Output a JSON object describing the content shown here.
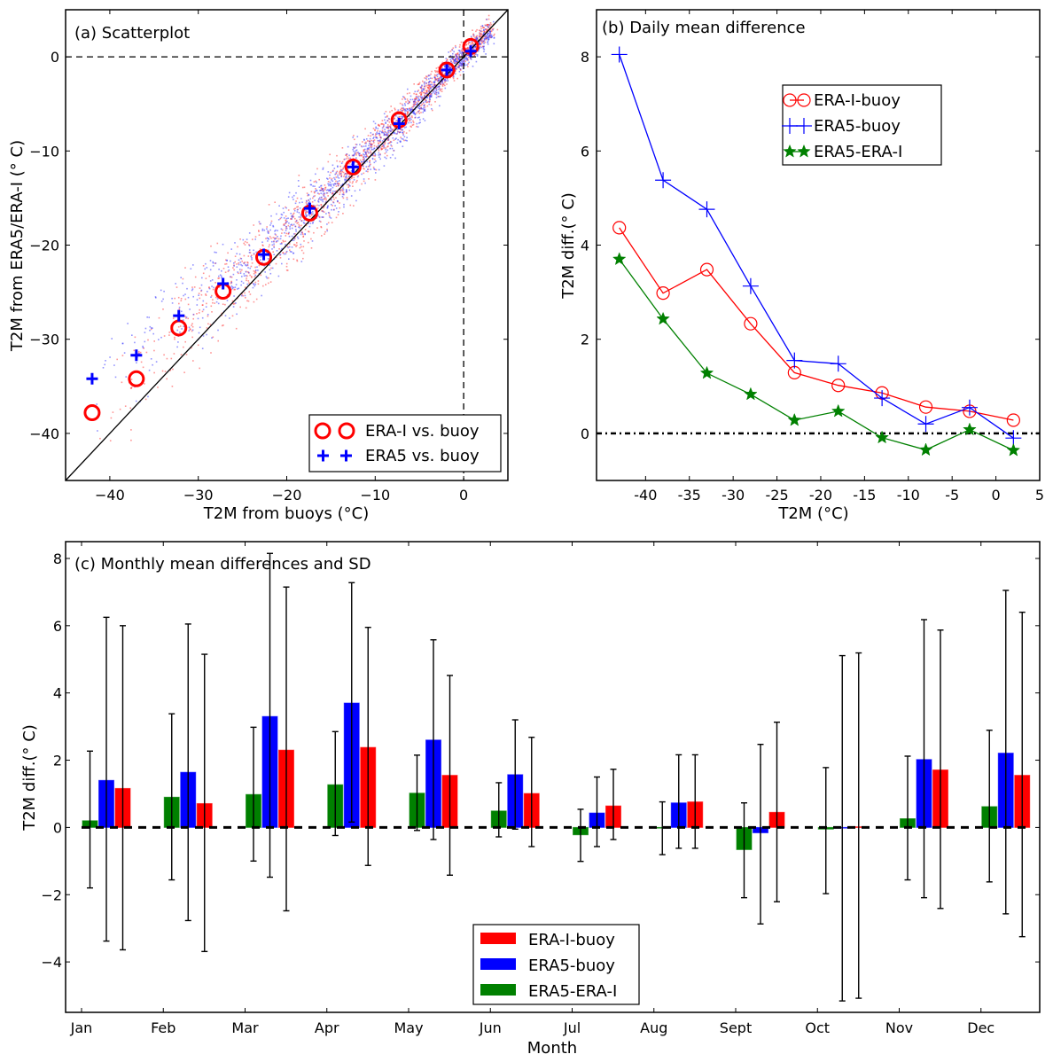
{
  "chart_data": [
    {
      "id": "a",
      "type": "scatter",
      "title": "(a) Scatterplot",
      "xlabel": "T2M from buoys (°C)",
      "ylabel": "T2M from ERA5/ERA-I (° C)",
      "xlim": [
        -45,
        5
      ],
      "ylim": [
        -45,
        5
      ],
      "xticks": [
        -40,
        -30,
        -20,
        -10,
        0
      ],
      "yticks": [
        0,
        -10,
        -20,
        -30,
        -40
      ],
      "xtick_labels": [
        "−40",
        "−30",
        "−20",
        "−10",
        "0"
      ],
      "ytick_labels": [
        "0",
        "−10",
        "−20",
        "−30",
        "−40"
      ],
      "reference_lines": {
        "one_to_one": true,
        "x_zero_dashed": true,
        "y_zero_dashed": true
      },
      "legend_position": "bottom-right",
      "series": [
        {
          "name": "ERA-I vs. buoy",
          "color": "#ff0000",
          "marker": "circle",
          "x": [
            -42.0,
            -37.0,
            -32.2,
            -27.2,
            -22.6,
            -17.4,
            -12.5,
            -7.3,
            -1.9,
            0.8
          ],
          "y": [
            -37.8,
            -34.2,
            -28.8,
            -24.9,
            -21.3,
            -16.6,
            -11.7,
            -6.7,
            -1.4,
            1.1
          ]
        },
        {
          "name": "ERA5 vs. buoy",
          "color": "#0000ff",
          "marker": "plus",
          "x": [
            -42.0,
            -37.0,
            -32.2,
            -27.2,
            -22.6,
            -17.4,
            -12.5,
            -7.3,
            -1.9,
            0.8
          ],
          "y": [
            -34.2,
            -31.7,
            -27.5,
            -24.1,
            -21.0,
            -16.1,
            -11.7,
            -7.1,
            -1.4,
            0.6
          ]
        }
      ],
      "legend": [
        {
          "label": "ERA-I vs. buoy",
          "color": "#ff0000",
          "marker": "circle"
        },
        {
          "label": "ERA5 vs. buoy",
          "color": "#0000ff",
          "marker": "plus"
        }
      ]
    },
    {
      "id": "b",
      "type": "line",
      "title": "(b) Daily mean difference",
      "xlabel": "T2M (°C)",
      "ylabel": "T2M diff.(° C)",
      "xlim": [
        -45.6,
        5
      ],
      "ylim": [
        -1,
        9
      ],
      "xticks": [
        -40,
        -35,
        -30,
        -25,
        -20,
        -15,
        -10,
        -5,
        0,
        5
      ],
      "xtick_labels": [
        "-40",
        "-35",
        "-30",
        "-25",
        "-20",
        "-15",
        "-10",
        "-5",
        "0",
        "5"
      ],
      "yticks": [
        0,
        2,
        4,
        6,
        8
      ],
      "ytick_labels": [
        "0",
        "2",
        "4",
        "6",
        "8"
      ],
      "reference_lines": {
        "y_zero_dashdot": true
      },
      "legend_position": "upper-center",
      "x": [
        -43,
        -38,
        -33,
        -28,
        -23,
        -18,
        -13,
        -8,
        -3,
        2
      ],
      "series": [
        {
          "name": "ERA-I-buoy",
          "color": "#ff0000",
          "marker": "open-circle",
          "values": [
            4.37,
            2.98,
            3.48,
            2.33,
            1.29,
            1.02,
            0.86,
            0.56,
            0.47,
            0.28
          ]
        },
        {
          "name": "ERA5-buoy",
          "color": "#0000ff",
          "marker": "plus",
          "values": [
            8.05,
            5.38,
            4.76,
            3.13,
            1.55,
            1.48,
            0.75,
            0.2,
            0.55,
            -0.1
          ]
        },
        {
          "name": "ERA5-ERA-I",
          "color": "#008000",
          "marker": "star",
          "values": [
            3.7,
            2.43,
            1.28,
            0.83,
            0.28,
            0.47,
            -0.09,
            -0.35,
            0.08,
            -0.36
          ]
        }
      ]
    },
    {
      "id": "c",
      "type": "bar",
      "title": "(c) Monthly mean differences and SD",
      "xlabel": "Month",
      "ylabel": "T2M diff.(° C)",
      "ylim": [
        -5.5,
        8.5
      ],
      "yticks": [
        8,
        6,
        4,
        2,
        0,
        -2,
        -4
      ],
      "ytick_labels": [
        "8",
        "6",
        "4",
        "2",
        "0",
        "−2",
        "−4"
      ],
      "reference_lines": {
        "y_zero_dashed": true
      },
      "legend_position": "bottom-center",
      "categories": [
        "Jan",
        "Feb",
        "Mar",
        "Apr",
        "May",
        "Jun",
        "Jul",
        "Aug",
        "Sept",
        "Oct",
        "Nov",
        "Dec"
      ],
      "series": [
        {
          "name": "ERA5-ERA-I",
          "color": "#008000",
          "values": [
            0.2,
            0.9,
            0.98,
            1.27,
            1.02,
            0.49,
            -0.22,
            0.0,
            -0.66,
            -0.05,
            0.26,
            0.62
          ],
          "err_upper": [
            2.27,
            3.38,
            2.98,
            2.85,
            2.15,
            1.33,
            0.54,
            0.76,
            0.73,
            1.78,
            2.12,
            2.89
          ],
          "err_lower": [
            -1.8,
            -1.56,
            -1.0,
            -0.24,
            -0.09,
            -0.28,
            -1.01,
            -0.81,
            -2.09,
            -1.97,
            -1.56,
            -1.62
          ]
        },
        {
          "name": "ERA5-buoy",
          "color": "#0000ff",
          "values": [
            1.4,
            1.64,
            3.3,
            3.7,
            2.6,
            1.57,
            0.43,
            0.73,
            -0.16,
            0.0,
            2.02,
            2.21
          ],
          "err_upper": [
            6.25,
            6.05,
            8.15,
            7.28,
            5.58,
            3.2,
            1.5,
            2.16,
            2.47,
            5.11,
            6.18,
            7.05
          ],
          "err_lower": [
            -3.38,
            -2.77,
            -1.48,
            0.16,
            -0.36,
            -0.05,
            -0.57,
            -0.62,
            -2.87,
            -5.16,
            -2.09,
            -2.57
          ]
        },
        {
          "name": "ERA-I-buoy",
          "color": "#ff0000",
          "values": [
            1.16,
            0.71,
            2.3,
            2.38,
            1.55,
            1.01,
            0.64,
            0.76,
            0.45,
            0.02,
            1.71,
            1.55
          ],
          "err_upper": [
            6.0,
            5.15,
            7.15,
            5.95,
            4.52,
            2.68,
            1.73,
            2.16,
            3.13,
            5.19,
            5.87,
            6.4
          ],
          "err_lower": [
            -3.64,
            -3.69,
            -2.48,
            -1.13,
            -1.42,
            -0.57,
            -0.36,
            -0.62,
            -2.21,
            -5.08,
            -2.41,
            -3.25
          ]
        }
      ],
      "legend": [
        {
          "label": "ERA-I-buoy",
          "color": "#ff0000"
        },
        {
          "label": "ERA5-buoy",
          "color": "#0000ff"
        },
        {
          "label": "ERA5-ERA-I",
          "color": "#008000"
        }
      ]
    }
  ]
}
